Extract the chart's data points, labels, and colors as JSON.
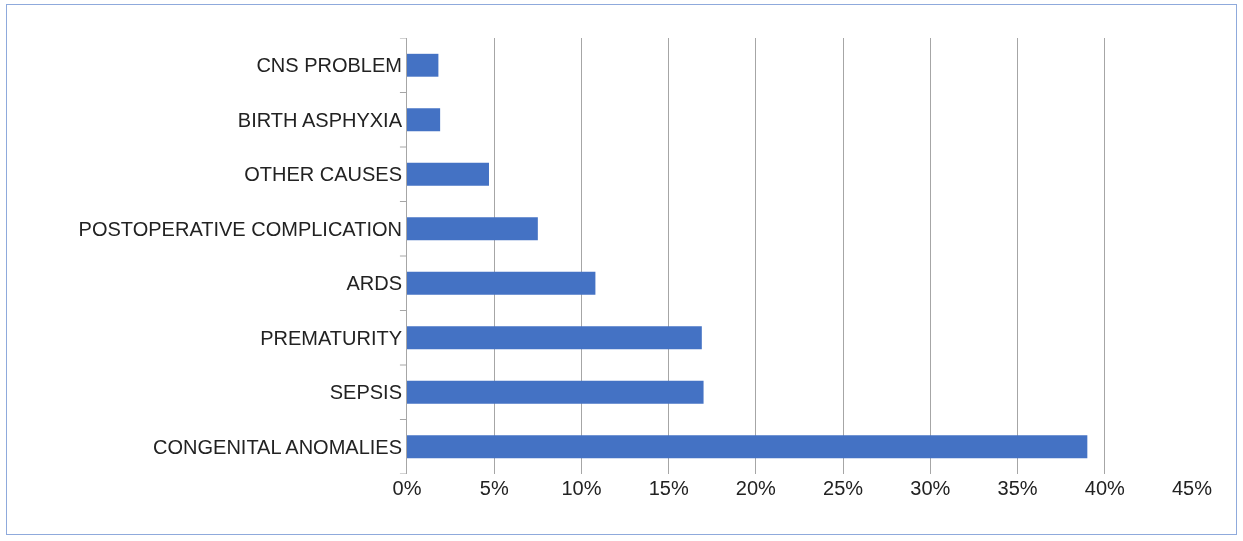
{
  "chart_data": {
    "type": "bar",
    "orientation": "horizontal",
    "categories": [
      "CNS PROBLEM",
      "BIRTH ASPHYXIA",
      "OTHER CAUSES",
      "POSTOPERATIVE COMPLICATION",
      "ARDS",
      "PREMATURITY",
      "SEPSIS",
      "CONGENITAL ANOMALIES"
    ],
    "values": [
      1.8,
      1.9,
      4.7,
      7.5,
      10.8,
      16.9,
      17.0,
      39.0
    ],
    "color": "#4472c4",
    "xlim": [
      0,
      45
    ],
    "xticks": [
      {
        "value": 0,
        "label": "0%"
      },
      {
        "value": 5,
        "label": "5%"
      },
      {
        "value": 10,
        "label": "10%"
      },
      {
        "value": 15,
        "label": "15%"
      },
      {
        "value": 20,
        "label": "20%"
      },
      {
        "value": 25,
        "label": "25%"
      },
      {
        "value": 30,
        "label": "30%"
      },
      {
        "value": 35,
        "label": "35%"
      },
      {
        "value": 40,
        "label": "40%"
      },
      {
        "value": 45,
        "label": "45%"
      }
    ],
    "grid": "x"
  }
}
